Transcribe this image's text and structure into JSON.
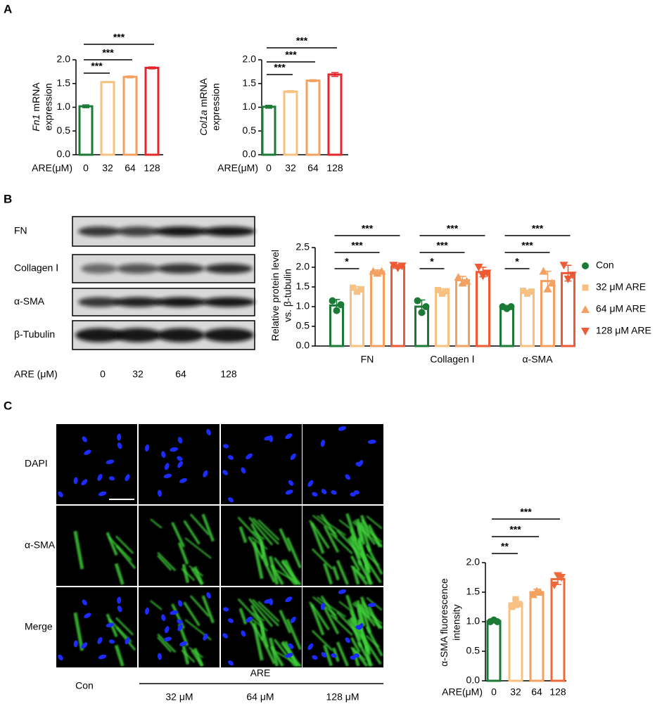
{
  "panels": {
    "A": "A",
    "B": "B",
    "C": "C"
  },
  "blot": {
    "rows": [
      "FN",
      "Collagen Ⅰ",
      "α-SMA",
      "β-Tubulin"
    ],
    "xlabel": "ARE (μM)",
    "lanes": [
      "0",
      "32",
      "64",
      "128"
    ]
  },
  "micrographs": {
    "rows": [
      "DAPI",
      "α-SMA",
      "Merge"
    ],
    "control": "Con",
    "treatment": "ARE",
    "doses": [
      "32 μM",
      "64 μM",
      "128 μM"
    ]
  },
  "chart_data": [
    {
      "type": "bar",
      "ylabel": {
        "gene": "Fn1",
        "line1": "mRNA",
        "line2": "expression"
      },
      "xlabel": "ARE(μM)",
      "categories": [
        "0",
        "32",
        "64",
        "128"
      ],
      "values": [
        1.02,
        1.53,
        1.64,
        1.83
      ],
      "errors": [
        0.03,
        0.01,
        0.02,
        0.02
      ],
      "colors": [
        "#1b7a35",
        "#f8c182",
        "#f4a060",
        "#e4262b"
      ],
      "ylim": [
        0,
        2
      ],
      "yticks": [
        {
          "value": 0,
          "label": "0.0"
        },
        {
          "value": 0.5,
          "label": "0.5"
        },
        {
          "value": 1,
          "label": "1.0"
        },
        {
          "value": 1.5,
          "label": "1.5"
        },
        {
          "value": 2,
          "label": "2.0"
        }
      ],
      "comparisons": [
        {
          "groups": [
            "0",
            "32"
          ],
          "label": "***"
        },
        {
          "groups": [
            "0",
            "64"
          ],
          "label": "***"
        },
        {
          "groups": [
            "0",
            "128"
          ],
          "label": "***"
        }
      ]
    },
    {
      "type": "bar",
      "ylabel": {
        "gene": "Col1a",
        "line1": "mRNA",
        "line2": "expression"
      },
      "xlabel": "ARE(μM)",
      "categories": [
        "0",
        "32",
        "64",
        "128"
      ],
      "values": [
        1.01,
        1.33,
        1.56,
        1.69
      ],
      "errors": [
        0.03,
        0.02,
        0.02,
        0.04
      ],
      "colors": [
        "#1b7a35",
        "#f8c182",
        "#f4a060",
        "#e4262b"
      ],
      "ylim": [
        0,
        2
      ],
      "yticks": [
        {
          "value": 0,
          "label": "0.0"
        },
        {
          "value": 0.5,
          "label": "0.5"
        },
        {
          "value": 1,
          "label": "1.0"
        },
        {
          "value": 1.5,
          "label": "1.5"
        },
        {
          "value": 2,
          "label": "2.0"
        }
      ],
      "comparisons": [
        {
          "groups": [
            "0",
            "32"
          ],
          "label": "***"
        },
        {
          "groups": [
            "0",
            "64"
          ],
          "label": "***"
        },
        {
          "groups": [
            "0",
            "128"
          ],
          "label": "***"
        }
      ]
    },
    {
      "type": "grouped_bar",
      "ylabel": {
        "line1": "Relative protein level",
        "line2": "vs. β-tubulin"
      },
      "legend": "right",
      "categories": [
        "FN",
        "Collagen Ⅰ",
        "α-SMA"
      ],
      "series": [
        {
          "name": "Con",
          "color": "#1b7a35",
          "marker": "circle",
          "values": [
            1.03,
            1.0,
            0.98
          ],
          "errors": [
            0.15,
            0.17,
            0.05
          ],
          "points": [
            [
              1.15,
              0.9,
              1.05
            ],
            [
              1.15,
              0.85,
              1.0
            ],
            [
              1.0,
              0.95,
              1.0
            ]
          ]
        },
        {
          "name": "32 μM ARE",
          "color": "#f8c182",
          "marker": "square",
          "values": [
            1.43,
            1.38,
            1.37
          ],
          "errors": [
            0.08,
            0.07,
            0.05
          ],
          "points": [
            [
              1.48,
              1.38,
              1.44
            ],
            [
              1.42,
              1.33,
              1.39
            ],
            [
              1.4,
              1.33,
              1.38
            ]
          ]
        },
        {
          "name": "64 μM ARE",
          "color": "#f4a060",
          "marker": "triangle",
          "values": [
            1.88,
            1.67,
            1.65
          ],
          "errors": [
            0.05,
            0.1,
            0.25
          ],
          "points": [
            [
              1.9,
              1.85,
              1.9
            ],
            [
              1.75,
              1.6,
              1.65
            ],
            [
              1.9,
              1.45,
              1.6
            ]
          ]
        },
        {
          "name": "128 μM ARE",
          "color": "#ee5a33",
          "marker": "triangle-down",
          "values": [
            2.02,
            1.88,
            1.85
          ],
          "errors": [
            0.05,
            0.12,
            0.2
          ],
          "points": [
            [
              2.05,
              1.98,
              2.03
            ],
            [
              2.0,
              1.78,
              1.85
            ],
            [
              2.05,
              1.7,
              1.8
            ]
          ]
        }
      ],
      "ylim": [
        0,
        2.5
      ],
      "yticks": [
        {
          "value": 0,
          "label": "0.0"
        },
        {
          "value": 0.5,
          "label": "0.5"
        },
        {
          "value": 1,
          "label": "1.0"
        },
        {
          "value": 1.5,
          "label": "1.5"
        },
        {
          "value": 2,
          "label": "2.0"
        },
        {
          "value": 2.5,
          "label": "2.5"
        }
      ],
      "comparisons": [
        [
          {
            "groups": [
              "Con",
              "32 μM ARE"
            ],
            "label": "*"
          },
          {
            "groups": [
              "Con",
              "64 μM ARE"
            ],
            "label": "***"
          },
          {
            "groups": [
              "Con",
              "128 μM ARE"
            ],
            "label": "***"
          }
        ],
        [
          {
            "groups": [
              "Con",
              "32 μM ARE"
            ],
            "label": "*"
          },
          {
            "groups": [
              "Con",
              "64 μM ARE"
            ],
            "label": "***"
          },
          {
            "groups": [
              "Con",
              "128 μM ARE"
            ],
            "label": "***"
          }
        ],
        [
          {
            "groups": [
              "Con",
              "32 μM ARE"
            ],
            "label": "*"
          },
          {
            "groups": [
              "Con",
              "64 μM ARE"
            ],
            "label": "***"
          },
          {
            "groups": [
              "Con",
              "128 μM ARE"
            ],
            "label": "***"
          }
        ]
      ]
    },
    {
      "type": "bar",
      "ylabel": {
        "line1": "α-SMA fluorescence",
        "line2": "intensity"
      },
      "xlabel": "ARE(μM)",
      "categories": [
        "0",
        "32",
        "64",
        "128"
      ],
      "values": [
        1.01,
        1.31,
        1.5,
        1.72
      ],
      "errors": [
        0.03,
        0.07,
        0.05,
        0.09
      ],
      "points": [
        [
          1.0,
          1.03,
          1.0
        ],
        [
          1.25,
          1.38,
          1.3
        ],
        [
          1.46,
          1.52,
          1.5
        ],
        [
          1.62,
          1.78,
          1.75
        ]
      ],
      "markers": [
        "circle",
        "square",
        "triangle",
        "triangle-down"
      ],
      "colors": [
        "#1b7a35",
        "#f8c182",
        "#f4a060",
        "#ee6a3a"
      ],
      "ylim": [
        0,
        2
      ],
      "yticks": [
        {
          "value": 0,
          "label": "0.0"
        },
        {
          "value": 0.5,
          "label": "0.5"
        },
        {
          "value": 1,
          "label": "1.0"
        },
        {
          "value": 1.5,
          "label": "1.5"
        },
        {
          "value": 2,
          "label": "2.0"
        }
      ],
      "comparisons": [
        {
          "groups": [
            "0",
            "32"
          ],
          "label": "**"
        },
        {
          "groups": [
            "0",
            "64"
          ],
          "label": "***"
        },
        {
          "groups": [
            "0",
            "128"
          ],
          "label": "***"
        }
      ]
    }
  ]
}
